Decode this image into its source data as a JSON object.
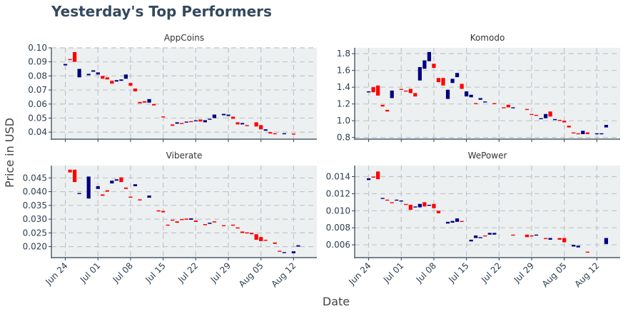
{
  "title": "Yesterday's Top Performers",
  "colors": {
    "increasing": "#000080",
    "decreasing": "#ff0000",
    "plot_bg": "#ecf0f1",
    "grid": "#bfc6c9",
    "axis": "#2c3e50"
  },
  "chart_data": {
    "type": "candlestick",
    "xlabel": "Date",
    "ylabel": "Price in USD",
    "x_tick_labels": [
      "Jun 24",
      "Jul 01",
      "Jul 08",
      "Jul 15",
      "Jul 22",
      "Jul 29",
      "Aug 05",
      "Aug 12"
    ],
    "x_range": [
      "2018-06-21",
      "2018-08-17"
    ],
    "grid": true,
    "legend": "none",
    "panels": [
      {
        "title": "AppCoins",
        "ylim": [
          0.035,
          0.1
        ],
        "y_ticks": [
          0.04,
          0.05,
          0.06,
          0.07,
          0.08,
          0.09,
          0.1
        ],
        "y_tick_labels": [
          "0.04",
          "0.05",
          "0.06",
          "0.07",
          "0.08",
          "0.09",
          "0.10"
        ],
        "candles": [
          [
            "2018-06-24",
            0.0875,
            0.0885
          ],
          [
            "2018-06-25",
            0.092,
            0.0915
          ],
          [
            "2018-06-26",
            0.097,
            0.09
          ],
          [
            "2018-06-27",
            0.079,
            0.085
          ],
          [
            "2018-06-29",
            0.0805,
            0.0815
          ],
          [
            "2018-06-30",
            0.083,
            0.084
          ],
          [
            "2018-07-01",
            0.081,
            0.0825
          ],
          [
            "2018-07-02",
            0.08,
            0.078
          ],
          [
            "2018-07-03",
            0.079,
            0.0775
          ],
          [
            "2018-07-04",
            0.0765,
            0.0745
          ],
          [
            "2018-07-05",
            0.076,
            0.077
          ],
          [
            "2018-07-06",
            0.0765,
            0.0775
          ],
          [
            "2018-07-07",
            0.078,
            0.081
          ],
          [
            "2018-07-08",
            0.075,
            0.073
          ],
          [
            "2018-07-09",
            0.071,
            0.069
          ],
          [
            "2018-07-10",
            0.0615,
            0.0605
          ],
          [
            "2018-07-11",
            0.062,
            0.061
          ],
          [
            "2018-07-12",
            0.061,
            0.0635
          ],
          [
            "2018-07-13",
            0.06,
            0.059
          ],
          [
            "2018-07-15",
            0.0512,
            0.0505
          ],
          [
            "2018-07-17",
            0.0455,
            0.0445
          ],
          [
            "2018-07-18",
            0.046,
            0.047
          ],
          [
            "2018-07-19",
            0.0465,
            0.046
          ],
          [
            "2018-07-20",
            0.0468,
            0.0475
          ],
          [
            "2018-07-21",
            0.0478,
            0.0472
          ],
          [
            "2018-07-22",
            0.048,
            0.0484
          ],
          [
            "2018-07-23",
            0.049,
            0.0475
          ],
          [
            "2018-07-24",
            0.047,
            0.0485
          ],
          [
            "2018-07-25",
            0.0488,
            0.0495
          ],
          [
            "2018-07-26",
            0.05,
            0.0525
          ],
          [
            "2018-07-28",
            0.052,
            0.053
          ],
          [
            "2018-07-29",
            0.0515,
            0.0525
          ],
          [
            "2018-07-30",
            0.051,
            0.0495
          ],
          [
            "2018-07-31",
            0.047,
            0.0455
          ],
          [
            "2018-08-01",
            0.0455,
            0.0465
          ],
          [
            "2018-08-02",
            0.045,
            0.0445
          ],
          [
            "2018-08-04",
            0.047,
            0.044
          ],
          [
            "2018-08-05",
            0.045,
            0.042
          ],
          [
            "2018-08-06",
            0.041,
            0.042
          ],
          [
            "2018-08-07",
            0.04,
            0.039
          ],
          [
            "2018-08-08",
            0.0392,
            0.0385
          ],
          [
            "2018-08-10",
            0.0388,
            0.0392
          ],
          [
            "2018-08-12",
            0.039,
            0.0385
          ]
        ]
      },
      {
        "title": "Komodo",
        "ylim": [
          0.78,
          1.87
        ],
        "y_ticks": [
          0.8,
          1.0,
          1.2,
          1.4,
          1.6,
          1.8
        ],
        "y_tick_labels": [
          "0.8",
          "1.0",
          "1.2",
          "1.4",
          "1.6",
          "1.8"
        ],
        "candles": [
          [
            "2018-06-24",
            1.34,
            1.35
          ],
          [
            "2018-06-25",
            1.4,
            1.34
          ],
          [
            "2018-06-26",
            1.42,
            1.3
          ],
          [
            "2018-06-27",
            1.19,
            1.17
          ],
          [
            "2018-06-28",
            1.13,
            1.11
          ],
          [
            "2018-06-29",
            1.27,
            1.36
          ],
          [
            "2018-07-01",
            1.38,
            1.37
          ],
          [
            "2018-07-02",
            1.36,
            1.35
          ],
          [
            "2018-07-03",
            1.38,
            1.33
          ],
          [
            "2018-07-04",
            1.33,
            1.29
          ],
          [
            "2018-07-05",
            1.48,
            1.64
          ],
          [
            "2018-07-06",
            1.62,
            1.72
          ],
          [
            "2018-07-07",
            1.71,
            1.82
          ],
          [
            "2018-07-08",
            1.68,
            1.63
          ],
          [
            "2018-07-09",
            1.51,
            1.46
          ],
          [
            "2018-07-10",
            1.51,
            1.42
          ],
          [
            "2018-07-11",
            1.26,
            1.37
          ],
          [
            "2018-07-12",
            1.45,
            1.5
          ],
          [
            "2018-07-13",
            1.52,
            1.57
          ],
          [
            "2018-07-14",
            1.44,
            1.38
          ],
          [
            "2018-07-15",
            1.29,
            1.35
          ],
          [
            "2018-07-16",
            1.28,
            1.31
          ],
          [
            "2018-07-17",
            1.21,
            1.2
          ],
          [
            "2018-07-18",
            1.25,
            1.27
          ],
          [
            "2018-07-19",
            1.22,
            1.23
          ],
          [
            "2018-07-21",
            1.21,
            1.2
          ],
          [
            "2018-07-23",
            1.16,
            1.15
          ],
          [
            "2018-07-24",
            1.19,
            1.16
          ],
          [
            "2018-07-25",
            1.15,
            1.16
          ],
          [
            "2018-07-28",
            1.14,
            1.13
          ],
          [
            "2018-07-29",
            1.08,
            1.07
          ],
          [
            "2018-07-30",
            1.07,
            1.06
          ],
          [
            "2018-07-31",
            1.02,
            1.03
          ],
          [
            "2018-08-01",
            1.03,
            1.08
          ],
          [
            "2018-08-02",
            1.11,
            1.05
          ],
          [
            "2018-08-03",
            1.01,
            1.02
          ],
          [
            "2018-08-04",
            1.01,
            1.0
          ],
          [
            "2018-08-05",
            1.0,
            0.98
          ],
          [
            "2018-08-06",
            0.94,
            0.92
          ],
          [
            "2018-08-07",
            0.86,
            0.85
          ],
          [
            "2018-08-08",
            0.85,
            0.84
          ],
          [
            "2018-08-09",
            0.84,
            0.88
          ],
          [
            "2018-08-10",
            0.86,
            0.84
          ],
          [
            "2018-08-12",
            0.84,
            0.85
          ],
          [
            "2018-08-13",
            0.84,
            0.85
          ],
          [
            "2018-08-14",
            0.92,
            0.95
          ]
        ]
      },
      {
        "title": "Viberate",
        "ylim": [
          0.016,
          0.0495
        ],
        "y_ticks": [
          0.02,
          0.025,
          0.03,
          0.035,
          0.04,
          0.045
        ],
        "y_tick_labels": [
          "0.020",
          "0.025",
          "0.030",
          "0.035",
          "0.040",
          "0.045"
        ],
        "candles": [
          [
            "2018-06-25",
            0.048,
            0.047
          ],
          [
            "2018-06-26",
            0.048,
            0.0435
          ],
          [
            "2018-06-27",
            0.0392,
            0.0395
          ],
          [
            "2018-06-29",
            0.0375,
            0.0455
          ],
          [
            "2018-07-01",
            0.041,
            0.042
          ],
          [
            "2018-07-02",
            0.039,
            0.0385
          ],
          [
            "2018-07-03",
            0.0405,
            0.04
          ],
          [
            "2018-07-04",
            0.043,
            0.044
          ],
          [
            "2018-07-05",
            0.044,
            0.0445
          ],
          [
            "2018-07-06",
            0.0452,
            0.0435
          ],
          [
            "2018-07-07",
            0.0415,
            0.041
          ],
          [
            "2018-07-08",
            0.0382,
            0.0378
          ],
          [
            "2018-07-09",
            0.042,
            0.0427
          ],
          [
            "2018-07-10",
            0.0372,
            0.0368
          ],
          [
            "2018-07-12",
            0.0378,
            0.0386
          ],
          [
            "2018-07-14",
            0.0332,
            0.0328
          ],
          [
            "2018-07-15",
            0.033,
            0.0325
          ],
          [
            "2018-07-16",
            0.028,
            0.0278
          ],
          [
            "2018-07-17",
            0.0298,
            0.0295
          ],
          [
            "2018-07-18",
            0.0292,
            0.0287
          ],
          [
            "2018-07-19",
            0.03,
            0.0298
          ],
          [
            "2018-07-20",
            0.0302,
            0.0298
          ],
          [
            "2018-07-21",
            0.0298,
            0.0303
          ],
          [
            "2018-07-22",
            0.0295,
            0.029
          ],
          [
            "2018-07-24",
            0.0282,
            0.0278
          ],
          [
            "2018-07-25",
            0.0283,
            0.0287
          ],
          [
            "2018-07-26",
            0.0292,
            0.0288
          ],
          [
            "2018-07-28",
            0.0278,
            0.0275
          ],
          [
            "2018-07-30",
            0.028,
            0.0276
          ],
          [
            "2018-07-31",
            0.027,
            0.0266
          ],
          [
            "2018-08-01",
            0.0255,
            0.025
          ],
          [
            "2018-08-02",
            0.0252,
            0.0248
          ],
          [
            "2018-08-03",
            0.025,
            0.0245
          ],
          [
            "2018-08-04",
            0.0245,
            0.0225
          ],
          [
            "2018-08-05",
            0.0235,
            0.022
          ],
          [
            "2018-08-06",
            0.0225,
            0.0222
          ],
          [
            "2018-08-08",
            0.0215,
            0.021
          ],
          [
            "2018-08-09",
            0.0185,
            0.0182
          ],
          [
            "2018-08-10",
            0.0178,
            0.018
          ],
          [
            "2018-08-12",
            0.0176,
            0.0183
          ],
          [
            "2018-08-13",
            0.02,
            0.0205
          ]
        ]
      },
      {
        "title": "WePower",
        "ylim": [
          0.0045,
          0.0153
        ],
        "y_ticks": [
          0.006,
          0.008,
          0.01,
          0.012,
          0.014
        ],
        "y_tick_labels": [
          "0.006",
          "0.008",
          "0.010",
          "0.012",
          "0.014"
        ],
        "candles": [
          [
            "2018-06-24",
            0.0136,
            0.0138
          ],
          [
            "2018-06-25",
            0.014,
            0.0139
          ],
          [
            "2018-06-26",
            0.0146,
            0.0137
          ],
          [
            "2018-06-27",
            0.0114,
            0.0115
          ],
          [
            "2018-06-28",
            0.0113,
            0.0112
          ],
          [
            "2018-06-29",
            0.011,
            0.0109
          ],
          [
            "2018-06-30",
            0.0112,
            0.0113
          ],
          [
            "2018-07-01",
            0.0111,
            0.0112
          ],
          [
            "2018-07-02",
            0.0108,
            0.0107
          ],
          [
            "2018-07-03",
            0.0107,
            0.0101
          ],
          [
            "2018-07-04",
            0.0104,
            0.0105
          ],
          [
            "2018-07-05",
            0.0104,
            0.0108
          ],
          [
            "2018-07-06",
            0.011,
            0.0105
          ],
          [
            "2018-07-07",
            0.0106,
            0.0107
          ],
          [
            "2018-07-08",
            0.0108,
            0.0103
          ],
          [
            "2018-07-09",
            0.01,
            0.0097
          ],
          [
            "2018-07-11",
            0.0085,
            0.0087
          ],
          [
            "2018-07-12",
            0.0086,
            0.0088
          ],
          [
            "2018-07-13",
            0.0087,
            0.0091
          ],
          [
            "2018-07-14",
            0.0088,
            0.0087
          ],
          [
            "2018-07-16",
            0.0064,
            0.0066
          ],
          [
            "2018-07-17",
            0.0068,
            0.0071
          ],
          [
            "2018-07-18",
            0.0068,
            0.0069
          ],
          [
            "2018-07-19",
            0.0071,
            0.007
          ],
          [
            "2018-07-20",
            0.0072,
            0.0074
          ],
          [
            "2018-07-21",
            0.0072,
            0.0074
          ],
          [
            "2018-07-25",
            0.0072,
            0.0071
          ],
          [
            "2018-07-28",
            0.0072,
            0.0069
          ],
          [
            "2018-07-29",
            0.0071,
            0.007
          ],
          [
            "2018-07-30",
            0.0071,
            0.0072
          ],
          [
            "2018-08-01",
            0.0068,
            0.0067
          ],
          [
            "2018-08-02",
            0.0066,
            0.0068
          ],
          [
            "2018-08-04",
            0.0068,
            0.0066
          ],
          [
            "2018-08-05",
            0.0068,
            0.0063
          ],
          [
            "2018-08-07",
            0.0058,
            0.006
          ],
          [
            "2018-08-08",
            0.0057,
            0.0059
          ],
          [
            "2018-08-10",
            0.0052,
            0.0051
          ],
          [
            "2018-08-14",
            0.0061,
            0.0068
          ]
        ]
      }
    ]
  }
}
